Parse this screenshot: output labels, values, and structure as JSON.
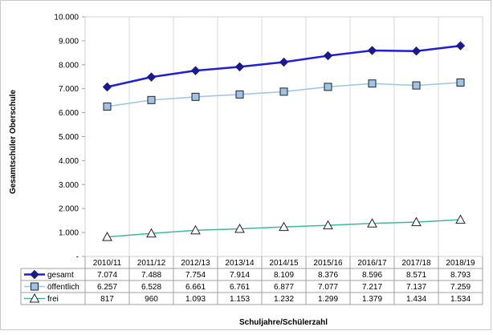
{
  "chart_data": {
    "type": "line",
    "categories": [
      "2010/11",
      "2011/12",
      "2012/13",
      "2013/14",
      "2014/15",
      "2015/16",
      "2016/17",
      "2017/18",
      "2018/19"
    ],
    "series": [
      {
        "name": "gesamt",
        "values": [
          7074,
          7488,
          7754,
          7914,
          8109,
          8376,
          8596,
          8571,
          8793
        ],
        "labels": [
          "7.074",
          "7.488",
          "7.754",
          "7.914",
          "8.109",
          "8.376",
          "8.596",
          "8.571",
          "8.793"
        ],
        "color": "#1f1fd6",
        "marker": "diamond"
      },
      {
        "name": "öffentlich",
        "values": [
          6257,
          6528,
          6661,
          6761,
          6877,
          7077,
          7217,
          7137,
          7259
        ],
        "labels": [
          "6.257",
          "6.528",
          "6.661",
          "6.761",
          "6.877",
          "7.077",
          "7.217",
          "7.137",
          "7.259"
        ],
        "color": "#9dc3e6",
        "marker": "square"
      },
      {
        "name": "frei",
        "values": [
          817,
          960,
          1093,
          1153,
          1232,
          1299,
          1379,
          1434,
          1534
        ],
        "labels": [
          "817",
          "960",
          "1.093",
          "1.153",
          "1.232",
          "1.299",
          "1.379",
          "1.434",
          "1.534"
        ],
        "color": "#40b89c",
        "marker": "triangle"
      }
    ],
    "yticks": [
      0,
      1000,
      2000,
      3000,
      4000,
      5000,
      6000,
      7000,
      8000,
      9000,
      10000
    ],
    "ytick_labels": [
      "-",
      "1.000",
      "2.000",
      "3.000",
      "4.000",
      "5.000",
      "6.000",
      "7.000",
      "8.000",
      "9.000",
      "10.000"
    ],
    "ylim": [
      0,
      10000
    ],
    "ylabel": "Gesamtschüler Oberschule",
    "xlabel": "Schuljahre/Schülerzahl",
    "title": "",
    "grid": "vertical",
    "legend": "data-table"
  }
}
